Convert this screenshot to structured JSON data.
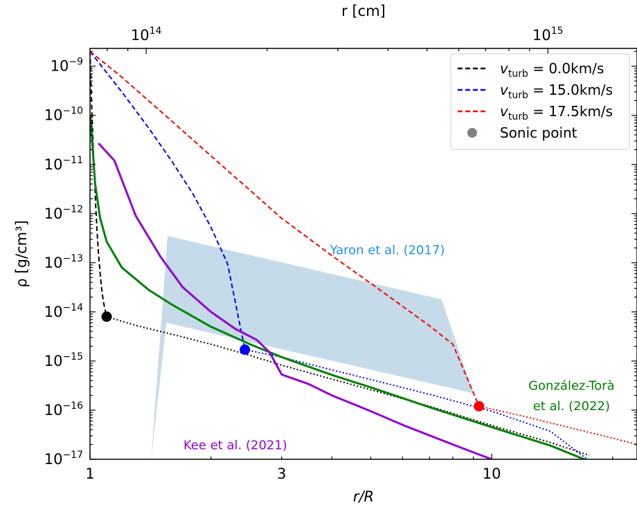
{
  "chart_data": {
    "type": "line",
    "xlabel": "r/R",
    "ylabel": "ρ   [g/cm³]",
    "top_xlabel": "r [cm]",
    "x_scale": "log",
    "y_scale": "log",
    "xlim": [
      1,
      23
    ],
    "ylim": [
      1e-17,
      2.3e-09
    ],
    "x_ticks": [
      {
        "value": 1,
        "label": "1"
      },
      {
        "value": 3,
        "label": "3"
      },
      {
        "value": 10,
        "label": "10"
      }
    ],
    "top_ticks": [
      {
        "value": 1.38,
        "base": "10",
        "exp": "14"
      },
      {
        "value": 13.8,
        "base": "10",
        "exp": "15"
      }
    ],
    "y_ticks": [
      {
        "value": 1e-09,
        "base": "10",
        "exp": "−9"
      },
      {
        "value": 1e-10,
        "base": "10",
        "exp": "−10"
      },
      {
        "value": 1e-11,
        "base": "10",
        "exp": "−11"
      },
      {
        "value": 1e-12,
        "base": "10",
        "exp": "−12"
      },
      {
        "value": 1e-13,
        "base": "10",
        "exp": "−13"
      },
      {
        "value": 1e-14,
        "base": "10",
        "exp": "−14"
      },
      {
        "value": 1e-15,
        "base": "10",
        "exp": "−15"
      },
      {
        "value": 1e-16,
        "base": "10",
        "exp": "−16"
      },
      {
        "value": 1e-17,
        "base": "10",
        "exp": "−17"
      }
    ],
    "legend": {
      "placement": "top-right",
      "entries": [
        {
          "sym": "v",
          "sub": "turb",
          "rest": " = 0.0km/s",
          "color": "#000000",
          "style": "dashed"
        },
        {
          "sym": "v",
          "sub": "turb",
          "rest": " = 15.0km/s",
          "color": "#0000ff",
          "style": "dashed"
        },
        {
          "sym": "v",
          "sub": "turb",
          "rest": " = 17.5km/s",
          "color": "#ff0000",
          "style": "dashed"
        },
        {
          "label": "Sonic point",
          "color": "#808080",
          "style": "marker"
        }
      ]
    },
    "series": [
      {
        "color": "#000000",
        "style": "dashed",
        "x": [
          1.0,
          1.008,
          1.016,
          1.024,
          1.032,
          1.04,
          1.05,
          1.06,
          1.07,
          1.08,
          1.09,
          1.1
        ],
        "y": [
          2e-09,
          2.2e-10,
          3.7e-11,
          7.6e-12,
          1.8e-12,
          5e-13,
          1.5e-13,
          6e-14,
          2.8e-14,
          1.6e-14,
          1.1e-14,
          8e-15
        ]
      },
      {
        "color": "#000000",
        "style": "dotted",
        "x": [
          1.1,
          1.3,
          1.6,
          2.0,
          2.5,
          3.0,
          4.0,
          5.0,
          7.0,
          10.0,
          14.0,
          17.5
        ],
        "y": [
          8e-15,
          5.3e-15,
          3.5e-15,
          2.2e-15,
          1.3e-15,
          8.2e-16,
          4.3e-16,
          2.6e-16,
          1.2e-16,
          4.9e-17,
          2.2e-17,
          1.2e-17
        ]
      },
      {
        "color": "#0000ff",
        "style": "dashed",
        "x": [
          1.0,
          1.2,
          1.4,
          1.6,
          1.8,
          2.0,
          2.2,
          2.43
        ],
        "y": [
          2e-09,
          3e-10,
          5.5e-11,
          1.15e-11,
          2.6e-12,
          5.3e-13,
          9.5e-14,
          1.7e-15
        ]
      },
      {
        "color": "#0000ff",
        "style": "dotted",
        "x": [
          2.43,
          3.0,
          4.0,
          5.0,
          7.0,
          10.0,
          14.0,
          17.3
        ],
        "y": [
          1.7e-15,
          1.2e-15,
          6.6e-16,
          4.2e-16,
          2.1e-16,
          9.5e-17,
          3.7e-17,
          1e-17
        ]
      },
      {
        "color": "#ff0000",
        "style": "dashed",
        "x": [
          1.0,
          1.2,
          1.5,
          2.0,
          2.5,
          3.0,
          4.0,
          5.0,
          6.0,
          7.0,
          8.0,
          9.3
        ],
        "y": [
          2e-09,
          6e-10,
          1.2e-10,
          1.5e-11,
          3e-12,
          8e-13,
          1.4e-13,
          3.8e-14,
          1.3e-14,
          5.2e-15,
          2.2e-15,
          1.2e-16
        ]
      },
      {
        "color": "#ff0000",
        "style": "dotted",
        "x": [
          9.3,
          12.0,
          16.0,
          20.0,
          23.0
        ],
        "y": [
          1.2e-16,
          7.5e-17,
          4.2e-17,
          2.7e-17,
          2e-17
        ]
      },
      {
        "color": "#008000",
        "style": "solid",
        "x": [
          1.0,
          1.01,
          1.03,
          1.06,
          1.1,
          1.2,
          1.4,
          1.6,
          2.0,
          2.5,
          3.0,
          4.0,
          5.0,
          7.0,
          10.0,
          14.0,
          17.0
        ],
        "y": [
          1e-10,
          4e-11,
          4e-12,
          8e-13,
          2.7e-13,
          8e-14,
          2.8e-14,
          1.4e-14,
          5e-15,
          2.2e-15,
          1.2e-15,
          5.2e-16,
          2.9e-16,
          1.15e-16,
          4.5e-17,
          1.9e-17,
          1e-17
        ]
      },
      {
        "color": "#9400d3",
        "style": "solid",
        "x": [
          1.05,
          1.15,
          1.3,
          1.5,
          1.7,
          2.0,
          2.3,
          2.6,
          2.8,
          3.0,
          3.5,
          4.0,
          5.0,
          6.0,
          8.0,
          10.0
        ],
        "y": [
          2.7e-11,
          1.2e-11,
          9e-13,
          1.3e-13,
          3.2e-14,
          1e-14,
          4.5e-15,
          2.7e-15,
          1.5e-15,
          5.3e-16,
          3.4e-16,
          2e-16,
          9.5e-17,
          5e-17,
          2e-17,
          1e-17
        ]
      }
    ],
    "sonic_points": [
      {
        "x": 1.1,
        "y": 8e-15,
        "color": "#000000"
      },
      {
        "x": 2.43,
        "y": 1.7e-15,
        "color": "#0000ff"
      },
      {
        "x": 9.3,
        "y": 1.2e-16,
        "color": "#ff0000"
      }
    ],
    "shaded_region": {
      "color": "#c5dbea",
      "points": [
        [
          1.42,
          1e-17
        ],
        [
          1.56,
          3.5e-13
        ],
        [
          7.5,
          1.8e-14
        ],
        [
          9.0,
          2.2e-16
        ],
        [
          1.55,
          6e-15
        ]
      ]
    },
    "annotations": [
      {
        "text": "Yaron et al. (2017)",
        "color": "#1e90ff",
        "x": 5.5,
        "y": 1.5e-13
      },
      {
        "text": "González-Torà",
        "color": "#008000",
        "x": 15.8,
        "y": 2.6e-16
      },
      {
        "text": "et al. (2022)",
        "color": "#008000",
        "x": 15.8,
        "y": 1e-16
      },
      {
        "text": "Kee et al. (2021)",
        "color": "#9400d3",
        "x": 2.3,
        "y": 1.6e-17
      }
    ]
  }
}
